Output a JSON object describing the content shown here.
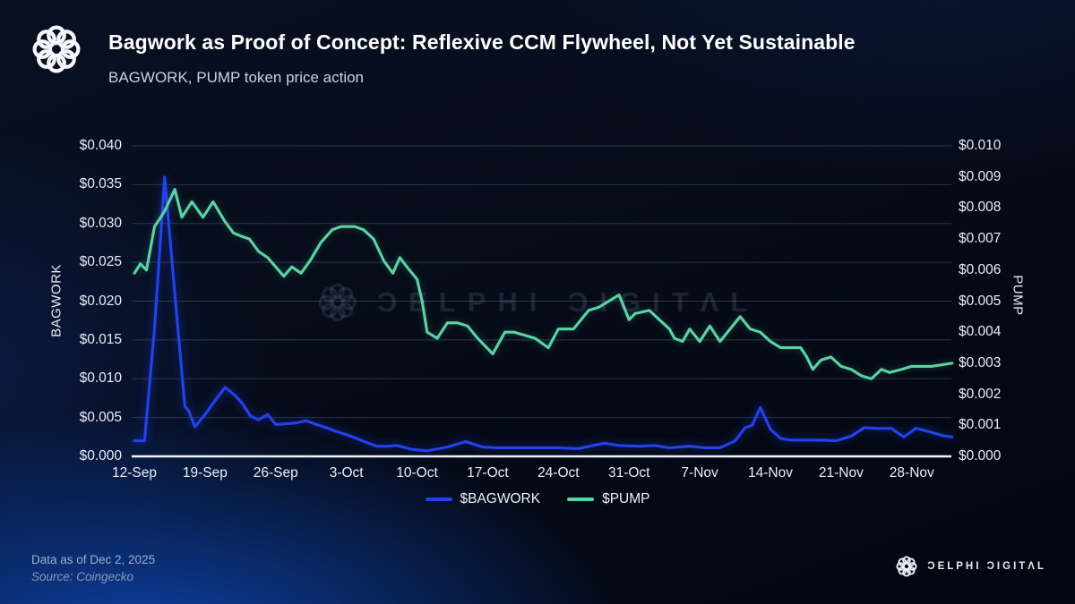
{
  "header": {
    "title": "Bagwork as Proof of Concept: Reflexive CCM Flywheel, Not Yet Sustainable",
    "subtitle": "BAGWORK, PUMP token price action"
  },
  "watermark": {
    "text": "ƆELPHI ƆIGITΛL"
  },
  "footer": {
    "data_as_of": "Data as of Dec 2, 2025",
    "source": "Source: Coingecko",
    "brand": "ƆELPHI ƆIGITΛL"
  },
  "chart_data": {
    "type": "line",
    "title": "Bagwork as Proof of Concept: Reflexive CCM Flywheel, Not Yet Sustainable",
    "subtitle": "BAGWORK, PUMP token price action",
    "grid": "horizontal",
    "legend_position": "bottom",
    "x_axis": {
      "day_range": [
        0,
        81
      ],
      "ticks": [
        {
          "label": "12-Sep",
          "day": 0
        },
        {
          "label": "19-Sep",
          "day": 7
        },
        {
          "label": "26-Sep",
          "day": 14
        },
        {
          "label": "3-Oct",
          "day": 21
        },
        {
          "label": "10-Oct",
          "day": 28
        },
        {
          "label": "17-Oct",
          "day": 35
        },
        {
          "label": "24-Oct",
          "day": 42
        },
        {
          "label": "31-Oct",
          "day": 49
        },
        {
          "label": "7-Nov",
          "day": 56
        },
        {
          "label": "14-Nov",
          "day": 63
        },
        {
          "label": "21-Nov",
          "day": 70
        },
        {
          "label": "28-Nov",
          "day": 77
        }
      ]
    },
    "left_axis": {
      "label": "BAGWORK",
      "range": [
        0,
        0.04
      ],
      "ticks": [
        {
          "label": "$0.000",
          "value": 0.0
        },
        {
          "label": "$0.005",
          "value": 0.005
        },
        {
          "label": "$0.010",
          "value": 0.01
        },
        {
          "label": "$0.015",
          "value": 0.015
        },
        {
          "label": "$0.020",
          "value": 0.02
        },
        {
          "label": "$0.025",
          "value": 0.025
        },
        {
          "label": "$0.030",
          "value": 0.03
        },
        {
          "label": "$0.035",
          "value": 0.035
        },
        {
          "label": "$0.040",
          "value": 0.04
        }
      ]
    },
    "right_axis": {
      "label": "PUMP",
      "range": [
        0,
        0.01
      ],
      "ticks": [
        {
          "label": "$0.000",
          "value": 0.0
        },
        {
          "label": "$0.001",
          "value": 0.001
        },
        {
          "label": "$0.002",
          "value": 0.002
        },
        {
          "label": "$0.003",
          "value": 0.003
        },
        {
          "label": "$0.004",
          "value": 0.004
        },
        {
          "label": "$0.005",
          "value": 0.005
        },
        {
          "label": "$0.006",
          "value": 0.006
        },
        {
          "label": "$0.007",
          "value": 0.007
        },
        {
          "label": "$0.008",
          "value": 0.008
        },
        {
          "label": "$0.009",
          "value": 0.009
        },
        {
          "label": "$0.010",
          "value": 0.01
        }
      ]
    },
    "series": [
      {
        "name": "$BAGWORK",
        "axis": "left",
        "color": "#2342ec",
        "points": [
          [
            0,
            0.002
          ],
          [
            1,
            0.002
          ],
          [
            2,
            0.0165
          ],
          [
            3,
            0.036
          ],
          [
            4,
            0.021
          ],
          [
            5,
            0.0065
          ],
          [
            5.4,
            0.0058
          ],
          [
            6,
            0.0038
          ],
          [
            7,
            0.0054
          ],
          [
            8,
            0.0072
          ],
          [
            9,
            0.0089
          ],
          [
            10,
            0.0078
          ],
          [
            10.7,
            0.0068
          ],
          [
            11.5,
            0.0052
          ],
          [
            12.3,
            0.0047
          ],
          [
            13.2,
            0.0054
          ],
          [
            14,
            0.0041
          ],
          [
            15,
            0.0042
          ],
          [
            16,
            0.0043
          ],
          [
            17,
            0.0046
          ],
          [
            18,
            0.0041
          ],
          [
            19,
            0.0037
          ],
          [
            20,
            0.0032
          ],
          [
            21,
            0.0028
          ],
          [
            22,
            0.0023
          ],
          [
            23,
            0.0018
          ],
          [
            24,
            0.0013
          ],
          [
            25,
            0.0013
          ],
          [
            26,
            0.0014
          ],
          [
            27.5,
            0.0009
          ],
          [
            29,
            0.0007
          ],
          [
            31,
            0.0012
          ],
          [
            32.8,
            0.0019
          ],
          [
            34.5,
            0.0012
          ],
          [
            36,
            0.0011
          ],
          [
            38,
            0.0011
          ],
          [
            40,
            0.0011
          ],
          [
            42,
            0.0011
          ],
          [
            44,
            0.001
          ],
          [
            46.5,
            0.0017
          ],
          [
            48,
            0.0014
          ],
          [
            50,
            0.0013
          ],
          [
            51.5,
            0.0014
          ],
          [
            53,
            0.0011
          ],
          [
            55,
            0.0013
          ],
          [
            56.5,
            0.0011
          ],
          [
            58,
            0.0011
          ],
          [
            59.5,
            0.002
          ],
          [
            60.5,
            0.0037
          ],
          [
            61.2,
            0.004
          ],
          [
            62,
            0.0063
          ],
          [
            63,
            0.0035
          ],
          [
            64,
            0.0023
          ],
          [
            65,
            0.0021
          ],
          [
            66.5,
            0.0021
          ],
          [
            68,
            0.0021
          ],
          [
            69.5,
            0.002
          ],
          [
            71,
            0.0026
          ],
          [
            72.3,
            0.0037
          ],
          [
            73.5,
            0.0036
          ],
          [
            75,
            0.0036
          ],
          [
            76.2,
            0.0025
          ],
          [
            77.4,
            0.0036
          ],
          [
            78.4,
            0.0033
          ],
          [
            80,
            0.0027
          ],
          [
            81,
            0.0025
          ]
        ]
      },
      {
        "name": "$PUMP",
        "axis": "right",
        "color": "#5cd3a4",
        "points": [
          [
            0,
            0.0059
          ],
          [
            0.6,
            0.0062
          ],
          [
            1.2,
            0.006
          ],
          [
            2,
            0.0074
          ],
          [
            3,
            0.0079
          ],
          [
            4,
            0.0086
          ],
          [
            4.7,
            0.0077
          ],
          [
            5.7,
            0.0082
          ],
          [
            6.8,
            0.0077
          ],
          [
            7.8,
            0.0082
          ],
          [
            8.9,
            0.0076
          ],
          [
            9.8,
            0.0072
          ],
          [
            10.5,
            0.0071
          ],
          [
            11.4,
            0.007
          ],
          [
            12.3,
            0.0066
          ],
          [
            13.2,
            0.0064
          ],
          [
            14,
            0.0061
          ],
          [
            14.8,
            0.0058
          ],
          [
            15.6,
            0.0061
          ],
          [
            16.5,
            0.0059
          ],
          [
            17.4,
            0.0063
          ],
          [
            18.5,
            0.0069
          ],
          [
            19.6,
            0.0073
          ],
          [
            20.5,
            0.0074
          ],
          [
            21.8,
            0.0074
          ],
          [
            22.7,
            0.0073
          ],
          [
            23.7,
            0.007
          ],
          [
            24.7,
            0.0063
          ],
          [
            25.6,
            0.0059
          ],
          [
            26.3,
            0.0064
          ],
          [
            27,
            0.0061
          ],
          [
            28,
            0.0057
          ],
          [
            28.5,
            0.005
          ],
          [
            29,
            0.004
          ],
          [
            30,
            0.0038
          ],
          [
            31,
            0.0043
          ],
          [
            32,
            0.0043
          ],
          [
            33,
            0.0042
          ],
          [
            34,
            0.0038
          ],
          [
            35.5,
            0.0033
          ],
          [
            36.7,
            0.004
          ],
          [
            37.6,
            0.004
          ],
          [
            38.7,
            0.0039
          ],
          [
            39.7,
            0.0038
          ],
          [
            41,
            0.0035
          ],
          [
            42,
            0.0041
          ],
          [
            43.5,
            0.0041
          ],
          [
            45,
            0.0047
          ],
          [
            46,
            0.0048
          ],
          [
            48,
            0.0052
          ],
          [
            49,
            0.0044
          ],
          [
            49.6,
            0.0046
          ],
          [
            51,
            0.0047
          ],
          [
            52,
            0.0044
          ],
          [
            53,
            0.0041
          ],
          [
            53.5,
            0.0038
          ],
          [
            54.3,
            0.0037
          ],
          [
            55,
            0.0041
          ],
          [
            56,
            0.0037
          ],
          [
            57,
            0.0042
          ],
          [
            58,
            0.0037
          ],
          [
            60,
            0.0045
          ],
          [
            61,
            0.0041
          ],
          [
            62,
            0.004
          ],
          [
            63,
            0.0037
          ],
          [
            64,
            0.0035
          ],
          [
            65,
            0.0035
          ],
          [
            66,
            0.0035
          ],
          [
            66.6,
            0.0032
          ],
          [
            67.2,
            0.0028
          ],
          [
            68,
            0.0031
          ],
          [
            69,
            0.0032
          ],
          [
            70,
            0.0029
          ],
          [
            71,
            0.0028
          ],
          [
            72,
            0.0026
          ],
          [
            73,
            0.0025
          ],
          [
            74,
            0.0028
          ],
          [
            74.8,
            0.0027
          ],
          [
            76,
            0.0028
          ],
          [
            77,
            0.0029
          ],
          [
            79,
            0.0029
          ],
          [
            81,
            0.003
          ]
        ]
      }
    ]
  }
}
